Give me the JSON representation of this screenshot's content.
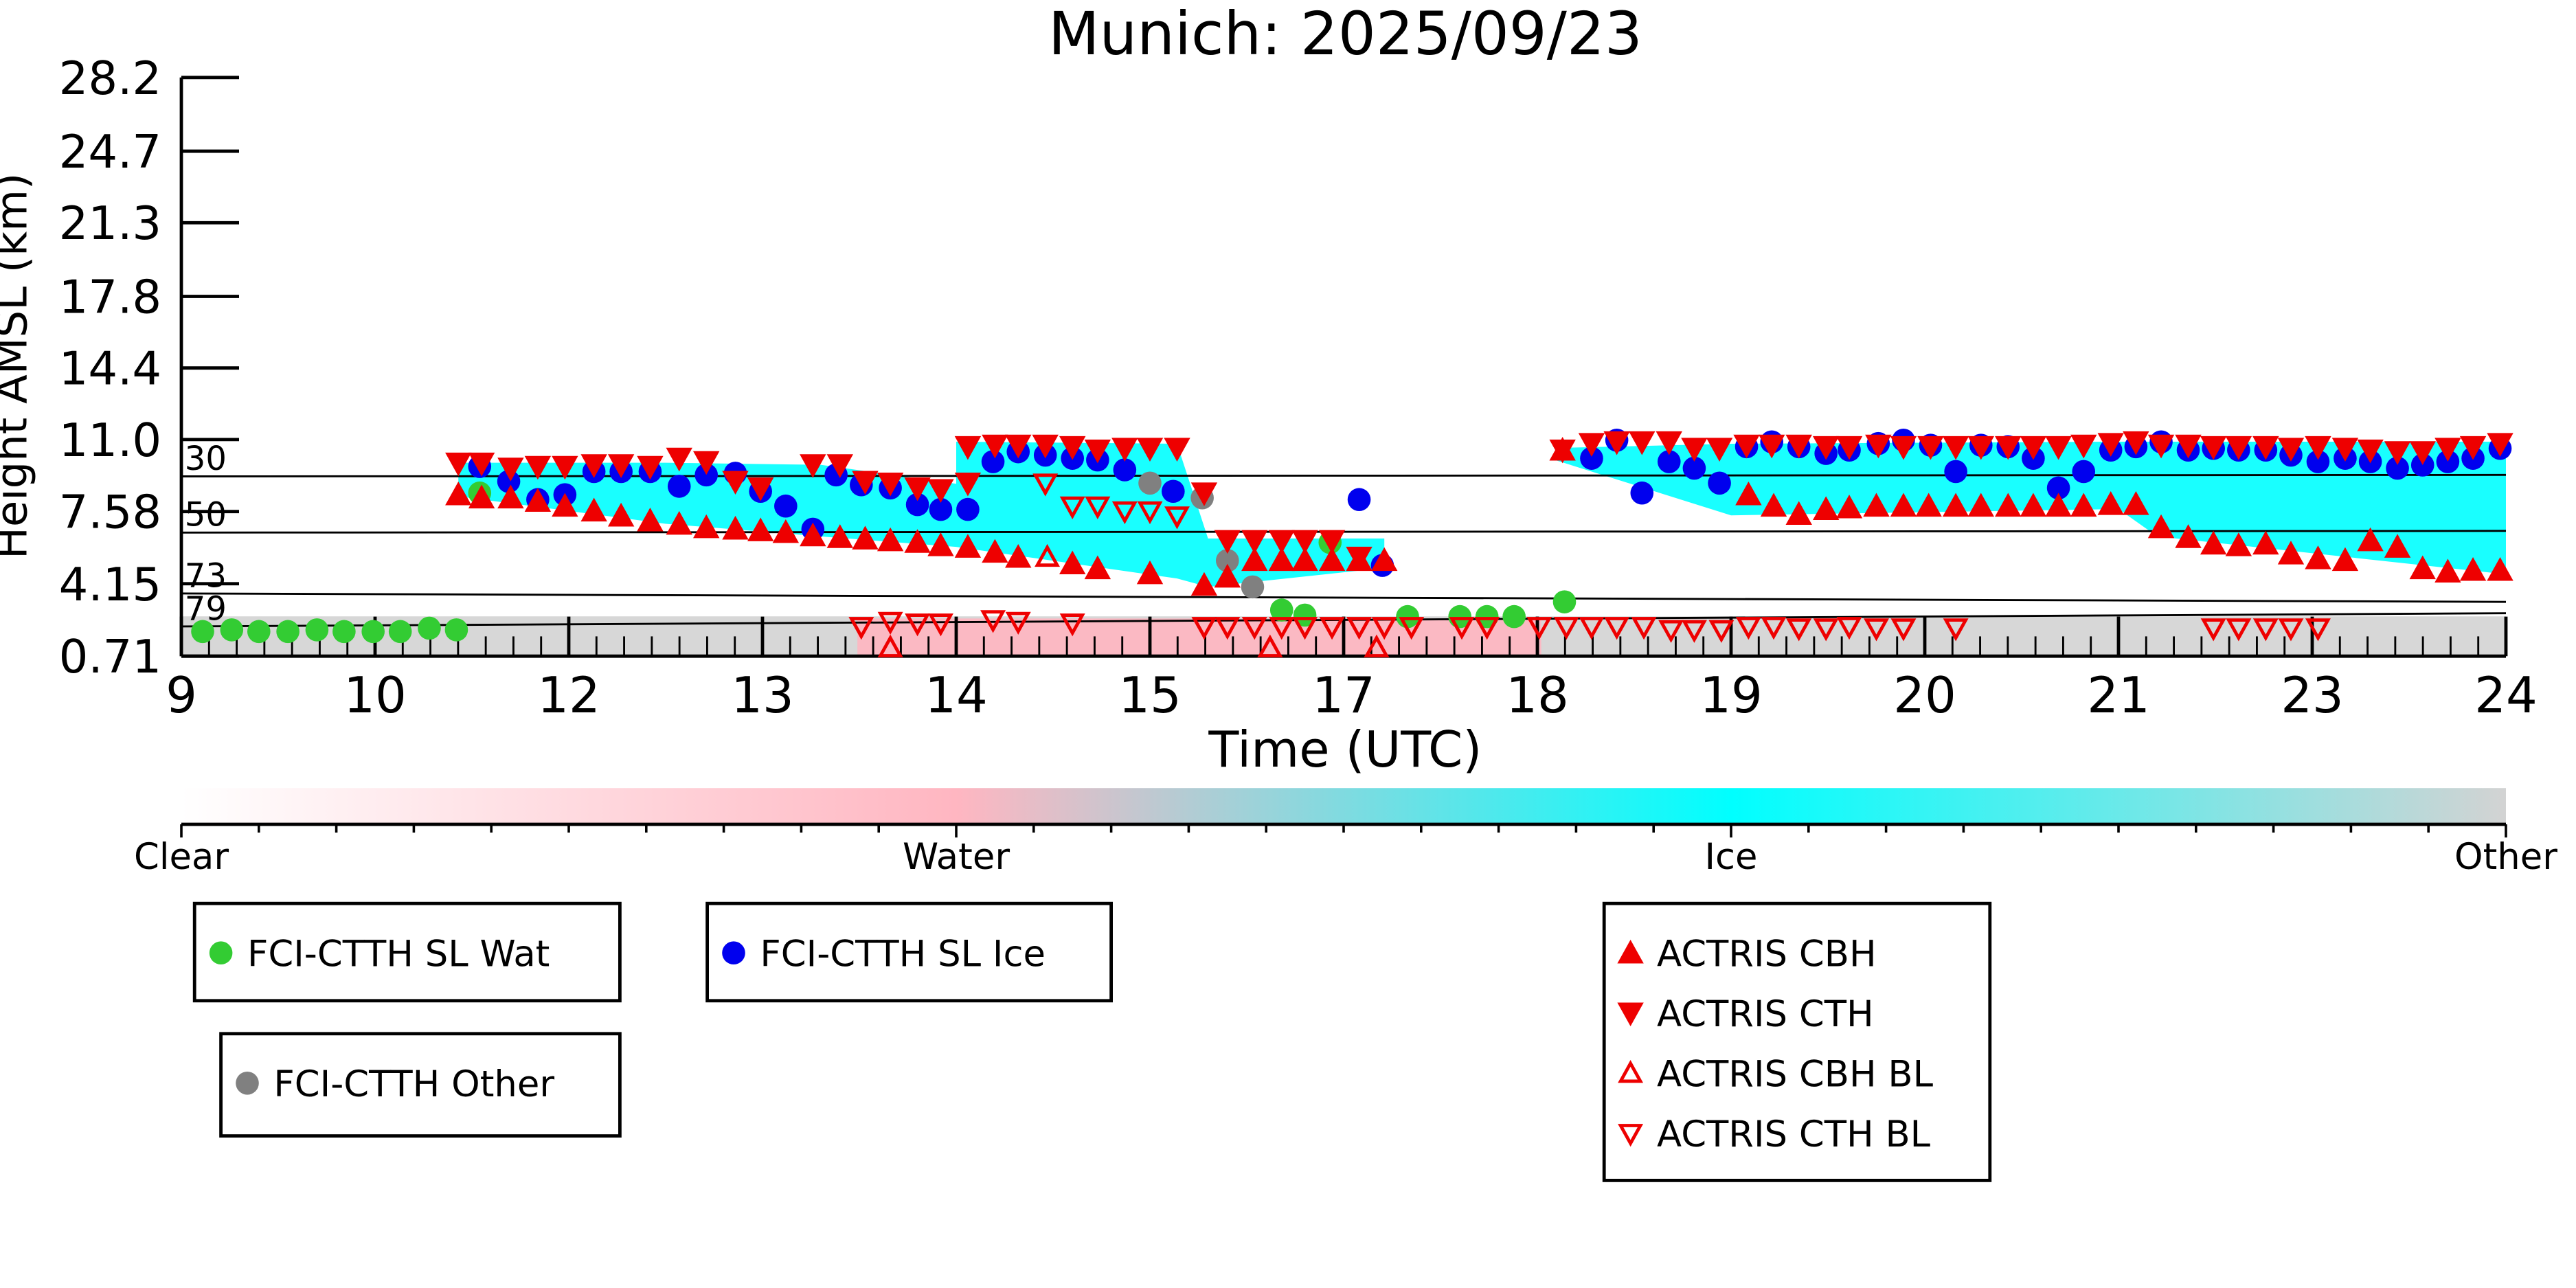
{
  "chart_data": {
    "type": "scatter",
    "title": "Munich: 2025/09/23",
    "xlabel": "Time (UTC)",
    "ylabel": "Height AMSL (km)",
    "xlim": [
      0,
      12
    ],
    "xticks": [
      {
        "value": 0,
        "label": "9"
      },
      {
        "value": 1,
        "label": "10"
      },
      {
        "value": 2,
        "label": "12"
      },
      {
        "value": 3,
        "label": "13"
      },
      {
        "value": 4,
        "label": "14"
      },
      {
        "value": 5,
        "label": "15"
      },
      {
        "value": 6,
        "label": "17"
      },
      {
        "value": 7,
        "label": "18"
      },
      {
        "value": 8,
        "label": "19"
      },
      {
        "value": 9,
        "label": "20"
      },
      {
        "value": 10,
        "label": "21"
      },
      {
        "value": 11,
        "label": "23"
      },
      {
        "value": 12,
        "label": "24"
      }
    ],
    "ylim": [
      0.71,
      28.2
    ],
    "yticks": [
      0.71,
      4.15,
      7.58,
      {
        "value": 11,
        "label": "11.0"
      },
      14.4,
      17.8,
      21.3,
      24.7,
      28.2
    ],
    "levels": [
      {
        "label": "30",
        "values": [
          9.25,
          9.32
        ]
      },
      {
        "label": "50",
        "values": [
          6.58,
          6.66
        ]
      },
      {
        "label": "73",
        "values": [
          3.69,
          3.29
        ]
      },
      {
        "label": "79",
        "values": [
          2.12,
          2.75
        ]
      }
    ],
    "regions": [
      {
        "class": "Other",
        "x": [
          0,
          12
        ],
        "top": [
          2.6,
          2.6
        ],
        "bottom": [
          0.71,
          0.71
        ]
      },
      {
        "class": "Water",
        "x": [
          3.49,
          7.02
        ],
        "top": [
          2.5,
          2.5
        ],
        "bottom": [
          0.71,
          0.71
        ]
      },
      {
        "class": "Ice",
        "x": [
          1.43,
          2.5,
          3.3,
          4.0
        ],
        "top": [
          9.9,
          9.9,
          9.8,
          8.9
        ],
        "bottom": [
          8.3,
          7.0,
          6.4,
          5.9
        ]
      },
      {
        "class": "Ice",
        "x": [
          4.0,
          5.14,
          5.3,
          6.21
        ],
        "top": [
          10.9,
          10.8,
          6.3,
          6.3
        ],
        "bottom": [
          5.9,
          4.4,
          4.0,
          4.9
        ]
      },
      {
        "class": "Ice",
        "x": [
          7.1,
          8.0,
          10.0,
          10.2,
          12
        ],
        "top": [
          10.6,
          10.8,
          10.9,
          10.9,
          10.9
        ],
        "bottom": [
          10.0,
          7.4,
          7.7,
          6.4,
          4.6
        ]
      }
    ],
    "colorbar": {
      "labels": [
        "Clear",
        "Water",
        "Ice",
        "Other"
      ],
      "colors": [
        "#ffffff",
        "#ffb6c1",
        "#00ffff",
        "#d3d3d3"
      ]
    },
    "series": [
      {
        "name": "FCI-CTTH SL Wat",
        "color": "#33cc33",
        "marker": "circle",
        "x": [
          0.11,
          0.26,
          0.4,
          0.55,
          0.7,
          0.84,
          0.99,
          1.13,
          1.28,
          1.42,
          1.54,
          5.68,
          5.8,
          5.93,
          6.33,
          6.6,
          6.74,
          6.88,
          7.14
        ],
        "values": [
          1.88,
          1.96,
          1.88,
          1.88,
          1.96,
          1.88,
          1.88,
          1.88,
          2.04,
          1.96,
          8.46,
          2.9,
          2.66,
          6.11,
          2.59,
          2.59,
          2.59,
          2.59,
          3.29
        ]
      },
      {
        "name": "FCI-CTTH SL Ice",
        "color": "#0000ee",
        "marker": "circle",
        "x": [
          1.54,
          1.69,
          1.84,
          1.98,
          2.13,
          2.27,
          2.42,
          2.57,
          2.71,
          2.86,
          2.99,
          3.12,
          3.26,
          3.38,
          3.51,
          3.66,
          3.8,
          3.92,
          4.06,
          4.19,
          4.32,
          4.46,
          4.6,
          4.73,
          4.87,
          5.12,
          6.08,
          6.2,
          7.28,
          7.41,
          7.54,
          7.68,
          7.81,
          7.94,
          8.08,
          8.21,
          8.35,
          8.49,
          8.61,
          8.76,
          8.89,
          9.03,
          9.16,
          9.29,
          9.43,
          9.56,
          9.69,
          9.82,
          9.96,
          10.09,
          10.22,
          10.36,
          10.49,
          10.62,
          10.76,
          10.89,
          11.03,
          11.17,
          11.3,
          11.44,
          11.57,
          11.7,
          11.83,
          11.97
        ],
        "values": [
          9.72,
          9.01,
          8.15,
          8.38,
          9.48,
          9.48,
          9.48,
          8.78,
          9.32,
          9.4,
          8.54,
          7.84,
          6.74,
          9.32,
          8.85,
          8.7,
          7.91,
          7.68,
          7.68,
          9.95,
          10.42,
          10.26,
          10.11,
          10.03,
          9.56,
          8.54,
          8.15,
          5.02,
          10.11,
          10.97,
          8.46,
          9.95,
          9.64,
          8.93,
          10.66,
          10.89,
          10.66,
          10.34,
          10.5,
          10.81,
          10.97,
          10.73,
          9.48,
          10.73,
          10.66,
          10.11,
          8.7,
          9.48,
          10.5,
          10.66,
          10.89,
          10.5,
          10.58,
          10.5,
          10.5,
          10.26,
          9.95,
          10.11,
          9.95,
          9.64,
          9.79,
          9.95,
          10.11,
          10.58
        ]
      },
      {
        "name": "FCI-CTTH Other",
        "color": "#808080",
        "marker": "circle",
        "x": [
          5.0,
          5.27,
          5.4,
          5.53
        ],
        "values": [
          8.93,
          8.23,
          5.25,
          4.0
        ]
      },
      {
        "name": "ACTRIS CBH",
        "color": "#ee0000",
        "marker": "up",
        "x": [
          1.43,
          1.55,
          1.7,
          1.84,
          1.98,
          2.13,
          2.27,
          2.42,
          2.57,
          2.71,
          2.86,
          2.99,
          3.12,
          3.26,
          3.4,
          3.53,
          3.66,
          3.8,
          3.92,
          4.06,
          4.2,
          4.32,
          4.6,
          4.73,
          5.0,
          5.28,
          5.4,
          5.54,
          5.68,
          5.8,
          5.94,
          6.08,
          6.21,
          7.13,
          8.09,
          8.22,
          8.35,
          8.49,
          8.61,
          8.75,
          8.89,
          9.02,
          9.16,
          9.29,
          9.43,
          9.56,
          9.69,
          9.82,
          9.96,
          10.09,
          10.22,
          10.36,
          10.49,
          10.62,
          10.76,
          10.89,
          11.03,
          11.17,
          11.3,
          11.44,
          11.57,
          11.7,
          11.83,
          11.97
        ],
        "values": [
          8.38,
          8.23,
          8.23,
          8.07,
          7.84,
          7.61,
          7.37,
          7.14,
          6.98,
          6.82,
          6.75,
          6.67,
          6.59,
          6.43,
          6.35,
          6.28,
          6.2,
          6.12,
          5.96,
          5.89,
          5.65,
          5.41,
          5.1,
          4.87,
          4.63,
          4.08,
          4.47,
          5.26,
          5.26,
          5.26,
          5.26,
          5.26,
          5.26,
          10.5,
          8.38,
          7.84,
          7.45,
          7.68,
          7.76,
          7.84,
          7.84,
          7.84,
          7.84,
          7.84,
          7.84,
          7.84,
          7.84,
          7.84,
          7.92,
          7.92,
          6.82,
          6.35,
          6.04,
          5.96,
          6.04,
          5.57,
          5.34,
          5.26,
          6.2,
          5.89,
          4.87,
          4.71,
          4.79,
          4.79
        ]
      },
      {
        "name": "ACTRIS CTH",
        "color": "#ee0000",
        "marker": "down",
        "x": [
          1.43,
          1.55,
          1.7,
          1.84,
          1.98,
          2.13,
          2.27,
          2.42,
          2.57,
          2.71,
          2.86,
          2.99,
          3.26,
          3.4,
          3.53,
          3.66,
          3.8,
          3.92,
          4.06,
          4.06,
          4.2,
          4.32,
          4.46,
          4.6,
          4.73,
          4.87,
          5.0,
          5.14,
          5.28,
          5.4,
          5.54,
          5.68,
          5.8,
          5.94,
          6.08,
          7.13,
          7.28,
          7.41,
          7.54,
          7.68,
          7.81,
          7.94,
          8.08,
          8.21,
          8.35,
          8.49,
          8.61,
          8.76,
          8.89,
          9.03,
          9.16,
          9.29,
          9.43,
          9.56,
          9.69,
          9.82,
          9.96,
          10.09,
          10.22,
          10.36,
          10.49,
          10.62,
          10.76,
          10.89,
          11.03,
          11.17,
          11.3,
          11.44,
          11.57,
          11.7,
          11.83,
          11.97
        ],
        "values": [
          9.88,
          9.88,
          9.64,
          9.72,
          9.72,
          9.8,
          9.8,
          9.72,
          10.11,
          9.95,
          9.01,
          8.7,
          9.8,
          9.8,
          9.01,
          8.93,
          8.7,
          8.62,
          8.93,
          10.66,
          10.73,
          10.73,
          10.73,
          10.66,
          10.5,
          10.58,
          10.58,
          10.58,
          8.46,
          6.2,
          6.2,
          6.2,
          6.2,
          6.2,
          5.41,
          10.5,
          10.81,
          10.89,
          10.89,
          10.89,
          10.58,
          10.58,
          10.73,
          10.73,
          10.73,
          10.66,
          10.66,
          10.73,
          10.66,
          10.66,
          10.66,
          10.66,
          10.66,
          10.66,
          10.66,
          10.73,
          10.81,
          10.89,
          10.73,
          10.73,
          10.66,
          10.66,
          10.66,
          10.58,
          10.66,
          10.58,
          10.5,
          10.42,
          10.42,
          10.58,
          10.66,
          10.81
        ]
      },
      {
        "name": "ACTRIS CBH BL",
        "color": "#ee0000",
        "marker": "up-open",
        "x": [
          4.47,
          3.66,
          5.62,
          6.17
        ],
        "values": [
          5.41,
          1.11,
          1.11,
          1.11
        ]
      },
      {
        "name": "ACTRIS CTH BL",
        "color": "#ee0000",
        "marker": "down-open",
        "x": [
          3.51,
          3.66,
          3.8,
          3.92,
          4.19,
          4.32,
          4.6,
          4.46,
          4.6,
          4.73,
          4.87,
          5.0,
          5.14,
          5.28,
          5.4,
          5.54,
          5.68,
          5.8,
          5.94,
          6.08,
          6.21,
          6.35,
          6.61,
          6.74,
          7.01,
          7.15,
          7.28,
          7.41,
          7.55,
          7.69,
          7.81,
          7.95,
          8.09,
          8.22,
          8.35,
          8.49,
          8.61,
          8.75,
          8.89,
          9.16,
          10.49,
          10.62,
          10.76,
          10.89,
          11.03
        ],
        "values": [
          2.12,
          2.36,
          2.28,
          2.28,
          2.44,
          2.36,
          2.28,
          8.93,
          7.84,
          7.84,
          7.61,
          7.61,
          7.37,
          2.12,
          2.12,
          2.12,
          2.12,
          2.12,
          2.12,
          2.12,
          2.12,
          2.12,
          2.12,
          2.12,
          2.12,
          2.12,
          2.12,
          2.12,
          2.12,
          1.97,
          1.97,
          1.97,
          2.12,
          2.12,
          2.05,
          2.05,
          2.12,
          2.05,
          2.05,
          2.05,
          2.05,
          2.05,
          2.05,
          2.05,
          2.05
        ]
      }
    ]
  }
}
